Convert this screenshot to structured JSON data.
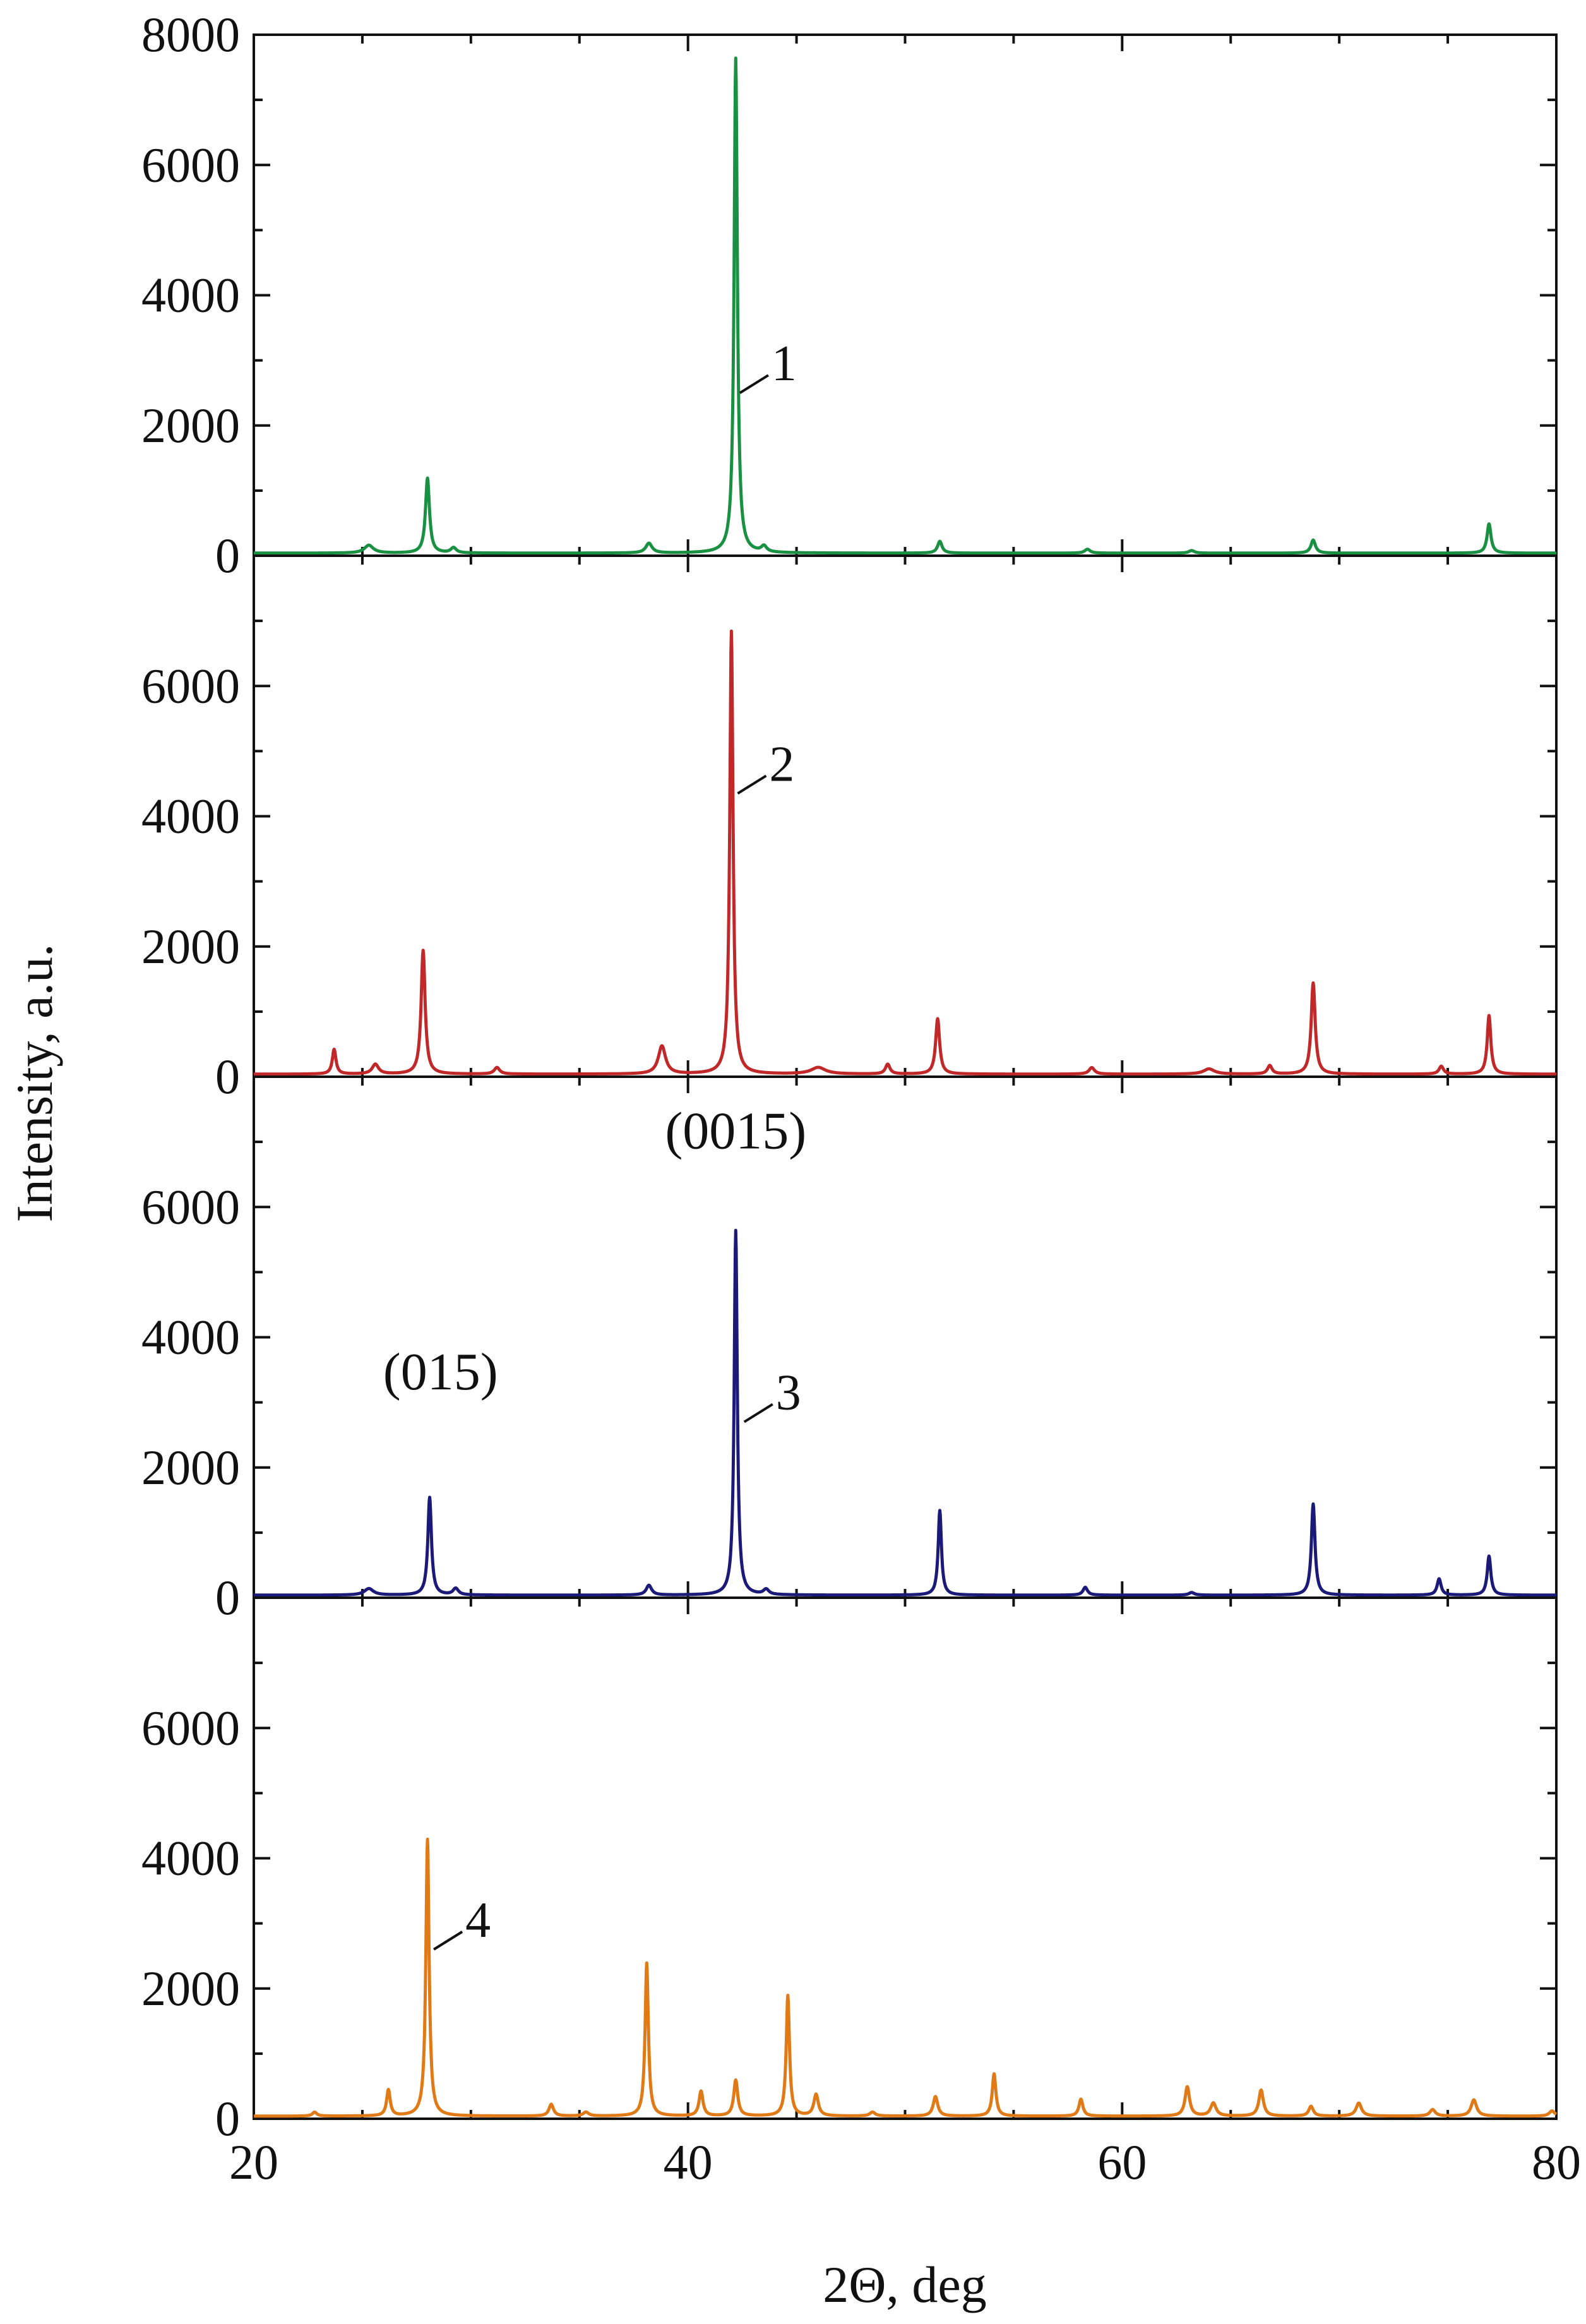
{
  "chart_data": {
    "type": "line",
    "xlabel": "2Θ, deg",
    "ylabel": "Intensity, a.u.",
    "xlim": [
      20,
      80
    ],
    "x_ticks": [
      "20",
      "40",
      "60",
      "80"
    ],
    "grid": false,
    "panels": [
      {
        "ylim": [
          0,
          8000
        ],
        "y_ticks": [
          "0",
          "2000",
          "4000",
          "6000",
          "8000"
        ],
        "color": "#1a9142",
        "curve_label": "1",
        "label_anchor": [
          42.1,
          2500
        ],
        "peaks": [
          [
            25.3,
            120,
            0.5
          ],
          [
            28.0,
            1150,
            0.22
          ],
          [
            29.2,
            80,
            0.3
          ],
          [
            38.2,
            150,
            0.35
          ],
          [
            42.2,
            7600,
            0.18
          ],
          [
            43.5,
            90,
            0.3
          ],
          [
            51.6,
            180,
            0.25
          ],
          [
            58.4,
            60,
            0.3
          ],
          [
            63.2,
            40,
            0.3
          ],
          [
            68.8,
            200,
            0.25
          ],
          [
            76.9,
            450,
            0.22
          ]
        ]
      },
      {
        "ylim": [
          0,
          8000
        ],
        "y_ticks": [
          "0",
          "2000",
          "4000",
          "6000"
        ],
        "color": "#c0282a",
        "curve_label": "2",
        "label_anchor": [
          42.0,
          4350
        ],
        "peaks": [
          [
            23.7,
            380,
            0.2
          ],
          [
            25.6,
            150,
            0.35
          ],
          [
            27.8,
            1900,
            0.22
          ],
          [
            31.2,
            100,
            0.3
          ],
          [
            38.8,
            430,
            0.4
          ],
          [
            42.0,
            6800,
            0.18
          ],
          [
            46.0,
            100,
            0.8
          ],
          [
            49.2,
            150,
            0.25
          ],
          [
            51.5,
            850,
            0.22
          ],
          [
            58.6,
            100,
            0.3
          ],
          [
            64.0,
            80,
            0.6
          ],
          [
            66.8,
            130,
            0.25
          ],
          [
            68.8,
            1400,
            0.22
          ],
          [
            74.7,
            120,
            0.25
          ],
          [
            76.9,
            900,
            0.2
          ]
        ]
      },
      {
        "ylim": [
          0,
          8000
        ],
        "y_ticks": [
          "0",
          "2000",
          "4000",
          "6000"
        ],
        "color": "#1c1a78",
        "curve_label": "3",
        "label_anchor": [
          42.3,
          2700
        ],
        "annotations": [
          {
            "text": "(0015)",
            "x": 42.2,
            "y": 6900
          },
          {
            "text": "(015)",
            "x": 28.6,
            "y": 3200
          }
        ],
        "peaks": [
          [
            25.3,
            100,
            0.5
          ],
          [
            28.1,
            1500,
            0.2
          ],
          [
            29.3,
            100,
            0.3
          ],
          [
            38.2,
            150,
            0.3
          ],
          [
            42.2,
            5600,
            0.17
          ],
          [
            43.6,
            80,
            0.3
          ],
          [
            51.6,
            1300,
            0.18
          ],
          [
            58.3,
            120,
            0.25
          ],
          [
            63.2,
            40,
            0.3
          ],
          [
            68.8,
            1400,
            0.2
          ],
          [
            74.6,
            250,
            0.22
          ],
          [
            76.9,
            600,
            0.2
          ]
        ]
      },
      {
        "ylim": [
          0,
          8000
        ],
        "y_ticks": [
          "0",
          "2000",
          "4000",
          "6000"
        ],
        "color": "#e07a16",
        "curve_label": "4",
        "label_anchor": [
          28.0,
          2600
        ],
        "peaks": [
          [
            22.8,
            60,
            0.25
          ],
          [
            26.2,
            400,
            0.2
          ],
          [
            28.0,
            4250,
            0.18
          ],
          [
            33.7,
            180,
            0.25
          ],
          [
            35.3,
            60,
            0.3
          ],
          [
            38.1,
            2350,
            0.18
          ],
          [
            40.6,
            380,
            0.22
          ],
          [
            42.2,
            550,
            0.22
          ],
          [
            44.6,
            1850,
            0.18
          ],
          [
            45.9,
            330,
            0.25
          ],
          [
            48.5,
            60,
            0.3
          ],
          [
            51.4,
            300,
            0.25
          ],
          [
            54.1,
            650,
            0.2
          ],
          [
            58.1,
            260,
            0.22
          ],
          [
            63.0,
            450,
            0.25
          ],
          [
            64.2,
            200,
            0.3
          ],
          [
            66.4,
            400,
            0.25
          ],
          [
            68.7,
            150,
            0.25
          ],
          [
            70.9,
            200,
            0.3
          ],
          [
            74.3,
            100,
            0.3
          ],
          [
            76.2,
            250,
            0.3
          ],
          [
            79.8,
            80,
            0.3
          ]
        ]
      }
    ]
  }
}
